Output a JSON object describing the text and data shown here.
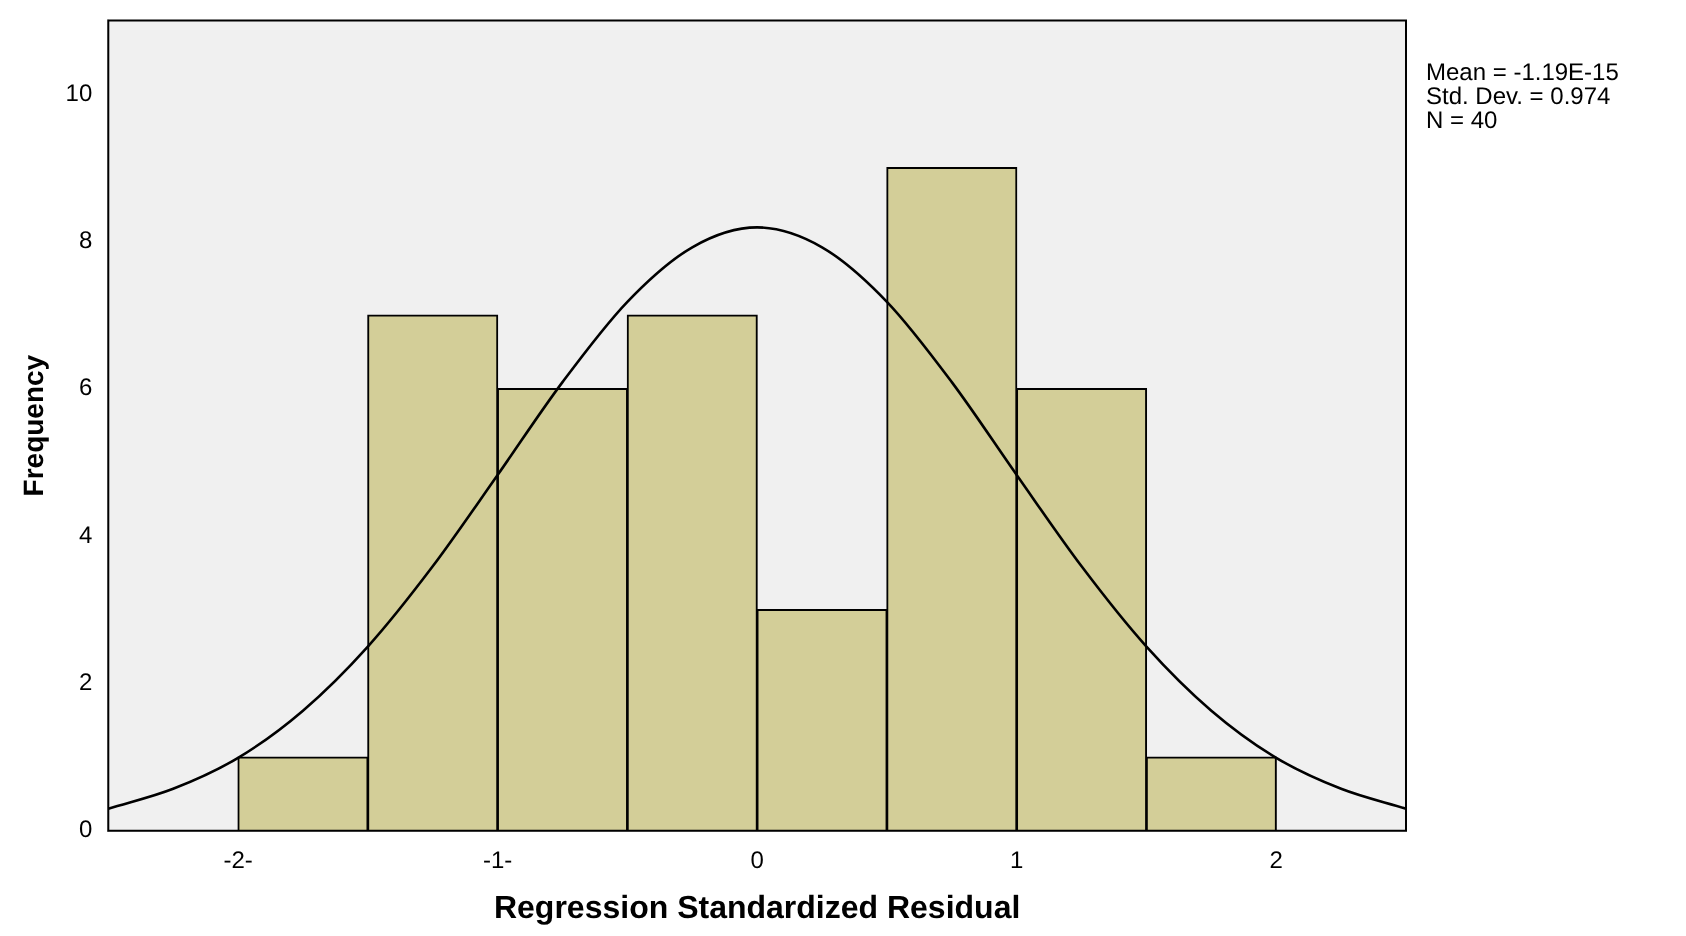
{
  "chart_data": {
    "type": "histogram",
    "xlabel": "Regression Standardized Residual",
    "ylabel": "Frequency",
    "annotations": [
      "Mean = -1.19E-15",
      "Std. Dev. = 0.974",
      "N = 40"
    ],
    "xlim": [
      -2.5,
      2.5
    ],
    "xticks": [
      {
        "value": -2,
        "label": "-2-"
      },
      {
        "value": -1,
        "label": "-1-"
      },
      0,
      1,
      2
    ],
    "ylim": [
      0,
      11
    ],
    "yticks": [
      0,
      2,
      4,
      6,
      8,
      10
    ],
    "grid": false,
    "legend": false,
    "marker": "none",
    "series": [
      {
        "bins": [
          -2,
          -1.5,
          -1,
          -0.5,
          0,
          0.5,
          1,
          1.5,
          2
        ],
        "values": [
          1,
          7,
          6,
          7,
          3,
          9,
          6,
          1
        ],
        "color": "#d3ce98"
      },
      {
        "type": "line",
        "x": [
          -2.5,
          -2.25,
          -2,
          -1.75,
          -1.5,
          -1.25,
          -1,
          -0.75,
          -0.5,
          -0.25,
          0,
          0.25,
          0.5,
          0.75,
          1,
          1.25,
          1.5,
          1.75,
          2,
          2.25,
          2.5
        ],
        "values": [
          0.3,
          0.57,
          0.99,
          1.63,
          2.5,
          3.59,
          4.83,
          6.09,
          7.18,
          7.92,
          8.19,
          7.92,
          7.18,
          6.09,
          4.83,
          3.59,
          2.5,
          1.63,
          0.99,
          0.57,
          0.3
        ],
        "color": "#000000"
      }
    ]
  }
}
